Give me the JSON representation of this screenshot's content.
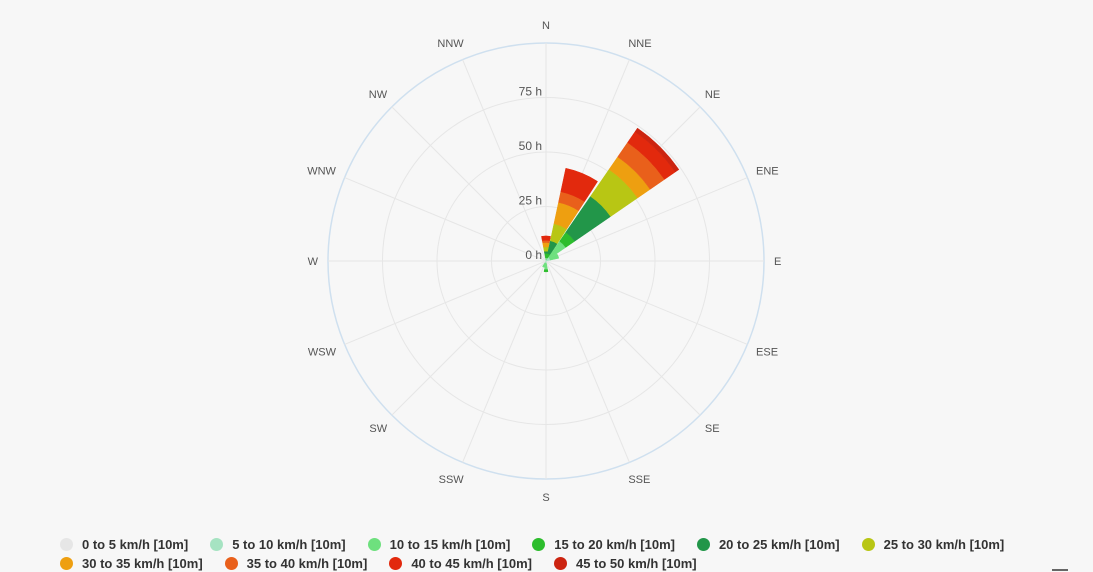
{
  "chart_data": {
    "type": "windrose",
    "directions": [
      "N",
      "NNE",
      "NE",
      "ENE",
      "E",
      "ESE",
      "SE",
      "SSE",
      "S",
      "SSW",
      "SW",
      "WSW",
      "W",
      "WNW",
      "NW",
      "NNW"
    ],
    "radial_axis": {
      "ticks": [
        0,
        25,
        50,
        75
      ],
      "tick_labels": [
        "0 h",
        "25 h",
        "50 h",
        "75 h"
      ],
      "range": [
        0,
        100
      ],
      "unit": "h"
    },
    "series": [
      {
        "name": "0 to 5 km/h [10m]",
        "color": "#e6e6e6",
        "values": [
          0,
          0,
          0,
          0,
          0,
          0,
          0,
          0,
          0,
          0,
          0,
          0,
          0,
          0,
          0,
          0
        ]
      },
      {
        "name": "5 to 10 km/h [10m]",
        "color": "#a6e3c2",
        "values": [
          0.5,
          0.5,
          2,
          2,
          0,
          0,
          0,
          0,
          1,
          1,
          0,
          0,
          0,
          0,
          0,
          0
        ]
      },
      {
        "name": "10 to 15 km/h [10m]",
        "color": "#6ee07e",
        "values": [
          1,
          1,
          9,
          4,
          0,
          0,
          0,
          0,
          3,
          2,
          0,
          0,
          0,
          0,
          0,
          0
        ]
      },
      {
        "name": "15 to 20 km/h [10m]",
        "color": "#2dbd2d",
        "values": [
          2,
          2,
          5,
          0,
          0,
          0,
          0,
          0,
          1,
          0,
          0,
          0,
          0,
          0,
          0,
          0
        ]
      },
      {
        "name": "20 to 25 km/h [10m]",
        "color": "#229649",
        "values": [
          1,
          6,
          20,
          0,
          0,
          0,
          0,
          0,
          0,
          0,
          0,
          0,
          0,
          0,
          0,
          0
        ]
      },
      {
        "name": "25 to 30 km/h [10m]",
        "color": "#b8c614",
        "values": [
          2,
          8,
          15,
          0,
          0,
          0,
          0,
          0,
          0,
          0,
          0,
          0,
          0,
          0,
          0,
          0
        ]
      },
      {
        "name": "30 to 35 km/h [10m]",
        "color": "#ee9f10",
        "values": [
          2,
          10,
          7,
          0,
          0,
          0,
          0,
          0,
          0,
          0,
          0,
          0,
          0,
          0,
          0,
          0
        ]
      },
      {
        "name": "35 to 40 km/h [10m]",
        "color": "#e9601b",
        "values": [
          1,
          5,
          8,
          0,
          0,
          0,
          0,
          0,
          0,
          0,
          0,
          0,
          0,
          0,
          0,
          0
        ]
      },
      {
        "name": "40 to 45 km/h [10m]",
        "color": "#e2290d",
        "values": [
          2,
          11,
          6,
          0,
          0,
          0,
          0,
          0,
          0,
          0,
          0,
          0,
          0,
          0,
          0,
          0
        ]
      },
      {
        "name": "45 to 50 km/h [10m]",
        "color": "#cc2410",
        "values": [
          0,
          0,
          2,
          0,
          0,
          0,
          0,
          0,
          0,
          0,
          0,
          0,
          0,
          0,
          0,
          0
        ]
      }
    ],
    "grid": true,
    "legend_position": "bottom"
  }
}
